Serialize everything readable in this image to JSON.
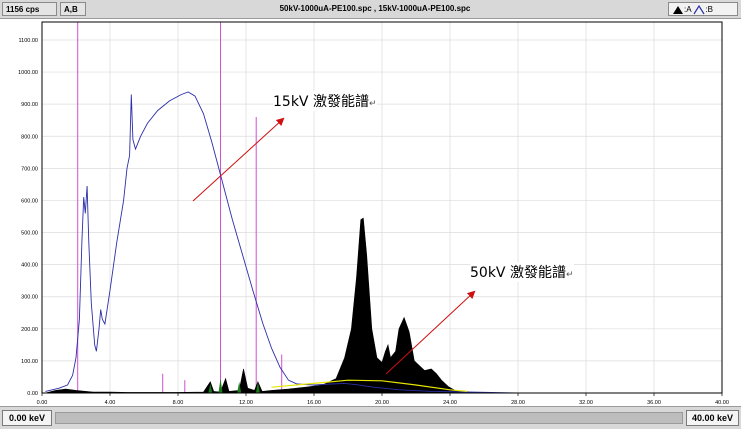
{
  "header": {
    "cps": "1156 cps",
    "tags": "A,B",
    "files": "50kV-1000uA-PE100.spc , 15kV-1000uA-PE100.spc",
    "legend_a": ":A",
    "legend_b": ":B"
  },
  "footer": {
    "left_kev": "0.00 keV",
    "right_kev": "40.00 keV"
  },
  "annotations": [
    {
      "text": "15kV 激發能譜",
      "ret": "↵"
    },
    {
      "text": "50kV 激發能譜",
      "ret": "↵"
    }
  ],
  "colors": {
    "series_a": "#000000",
    "series_b": "#2b2fa8",
    "markers": "#d050d0",
    "arrows": "#d01010",
    "background_line": "#e6e600",
    "peak_green": "#1a7a1a"
  },
  "chart_data": {
    "type": "line",
    "xlim": [
      0,
      40
    ],
    "ylim": [
      0,
      1156
    ],
    "x_ticks": [
      "0.00",
      "4.00",
      "8.00",
      "12.00",
      "16.00",
      "20.00",
      "24.00",
      "28.00",
      "32.00",
      "36.00",
      "40.00"
    ],
    "y_ticks": [
      "0.00",
      "100.00",
      "200.00",
      "300.00",
      "400.00",
      "500.00",
      "600.00",
      "700.00",
      "800.00",
      "900.00",
      "1000.00",
      "1100.00"
    ],
    "grid": true,
    "markers_kev": [
      {
        "x": 2.1,
        "y": 1156
      },
      {
        "x": 10.5,
        "y": 1156
      },
      {
        "x": 12.6,
        "y": 860
      },
      {
        "x": 14.1,
        "y": 120
      },
      {
        "x": 7.1,
        "y": 60
      },
      {
        "x": 8.4,
        "y": 40
      }
    ],
    "series": [
      {
        "name": "B",
        "style": "line",
        "points": [
          [
            0.2,
            5
          ],
          [
            1.0,
            15
          ],
          [
            1.5,
            25
          ],
          [
            1.8,
            55
          ],
          [
            2.0,
            110
          ],
          [
            2.2,
            230
          ],
          [
            2.35,
            480
          ],
          [
            2.45,
            610
          ],
          [
            2.55,
            560
          ],
          [
            2.65,
            645
          ],
          [
            2.75,
            470
          ],
          [
            2.9,
            280
          ],
          [
            3.1,
            150
          ],
          [
            3.2,
            130
          ],
          [
            3.35,
            200
          ],
          [
            3.45,
            260
          ],
          [
            3.55,
            230
          ],
          [
            3.7,
            215
          ],
          [
            4.0,
            320
          ],
          [
            4.4,
            470
          ],
          [
            4.8,
            600
          ],
          [
            5.0,
            700
          ],
          [
            5.15,
            740
          ],
          [
            5.25,
            930
          ],
          [
            5.35,
            790
          ],
          [
            5.5,
            760
          ],
          [
            5.8,
            800
          ],
          [
            6.2,
            840
          ],
          [
            6.8,
            880
          ],
          [
            7.5,
            910
          ],
          [
            8.2,
            930
          ],
          [
            8.6,
            938
          ],
          [
            9.0,
            925
          ],
          [
            9.5,
            870
          ],
          [
            10.0,
            780
          ],
          [
            10.6,
            660
          ],
          [
            11.2,
            540
          ],
          [
            11.8,
            430
          ],
          [
            12.4,
            320
          ],
          [
            13.0,
            215
          ],
          [
            13.5,
            140
          ],
          [
            14.0,
            80
          ],
          [
            14.5,
            40
          ],
          [
            15.0,
            28
          ],
          [
            16.0,
            25
          ],
          [
            17.0,
            28
          ],
          [
            17.8,
            30
          ],
          [
            18.5,
            26
          ],
          [
            19.5,
            18
          ],
          [
            21.0,
            10
          ],
          [
            23.0,
            5
          ],
          [
            25.0,
            3
          ],
          [
            28.0,
            0
          ]
        ]
      },
      {
        "name": "A",
        "style": "filled",
        "points": [
          [
            0.2,
            0
          ],
          [
            0.8,
            8
          ],
          [
            1.4,
            12
          ],
          [
            2.0,
            8
          ],
          [
            2.6,
            5
          ],
          [
            3.0,
            3
          ],
          [
            4.0,
            3
          ],
          [
            5.0,
            2
          ],
          [
            8.0,
            2
          ],
          [
            9.5,
            3
          ],
          [
            9.9,
            35
          ],
          [
            10.1,
            5
          ],
          [
            10.5,
            3
          ],
          [
            10.8,
            45
          ],
          [
            11.0,
            5
          ],
          [
            11.6,
            8
          ],
          [
            11.85,
            75
          ],
          [
            12.1,
            15
          ],
          [
            12.5,
            8
          ],
          [
            12.7,
            35
          ],
          [
            12.95,
            5
          ],
          [
            13.5,
            8
          ],
          [
            14.5,
            12
          ],
          [
            15.5,
            18
          ],
          [
            16.5,
            25
          ],
          [
            17.3,
            45
          ],
          [
            17.8,
            110
          ],
          [
            18.2,
            200
          ],
          [
            18.5,
            360
          ],
          [
            18.75,
            540
          ],
          [
            18.9,
            545
          ],
          [
            19.1,
            430
          ],
          [
            19.4,
            200
          ],
          [
            19.7,
            110
          ],
          [
            20.0,
            95
          ],
          [
            20.2,
            130
          ],
          [
            20.35,
            150
          ],
          [
            20.5,
            110
          ],
          [
            20.8,
            130
          ],
          [
            21.0,
            200
          ],
          [
            21.3,
            235
          ],
          [
            21.6,
            190
          ],
          [
            21.9,
            100
          ],
          [
            22.2,
            85
          ],
          [
            22.5,
            70
          ],
          [
            22.9,
            75
          ],
          [
            23.2,
            60
          ],
          [
            23.5,
            40
          ],
          [
            23.9,
            20
          ],
          [
            24.3,
            8
          ],
          [
            24.8,
            3
          ],
          [
            25.5,
            0
          ]
        ]
      },
      {
        "name": "A-background",
        "style": "line",
        "points": [
          [
            13.5,
            18
          ],
          [
            16.0,
            30
          ],
          [
            18.0,
            40
          ],
          [
            20.0,
            38
          ],
          [
            22.0,
            25
          ],
          [
            24.0,
            10
          ],
          [
            25.0,
            5
          ]
        ]
      }
    ],
    "green_peaks": [
      [
        10.5,
        45
      ],
      [
        11.6,
        35
      ],
      [
        12.7,
        35
      ],
      [
        9.9,
        28
      ]
    ]
  }
}
